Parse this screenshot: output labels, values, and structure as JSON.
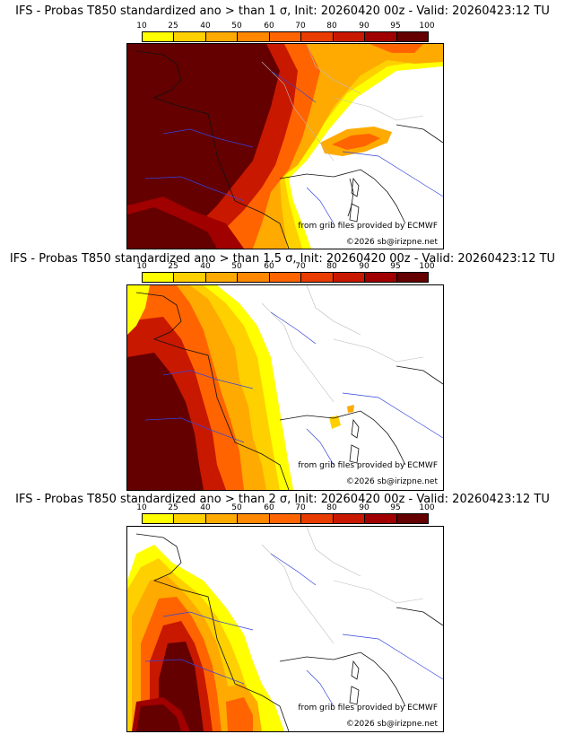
{
  "legend": {
    "ticks": [
      "10",
      "25",
      "40",
      "50",
      "60",
      "70",
      "80",
      "90",
      "95",
      "100"
    ],
    "colors": [
      "#ffff00",
      "#ffd000",
      "#ffaa00",
      "#ff8800",
      "#ff6400",
      "#e83c00",
      "#c81800",
      "#a00000",
      "#640000"
    ]
  },
  "panels": [
    {
      "title": "IFS - Probas T850  standardized ano > than 1 σ, Init: 20260420 00z - Valid: 20260423:12 TU",
      "credit_source": "from grib files provided by ECMWF",
      "credit_copyright": "©2026 sb@irizpne.net"
    },
    {
      "title": "IFS - Probas T850  standardized ano > than 1.5 σ, Init: 20260420 00z - Valid: 20260423:12 TU",
      "credit_source": "from grib files provided by ECMWF",
      "credit_copyright": "©2026 sb@irizpne.net"
    },
    {
      "title": "IFS - Probas T850  standardized ano > than 2 σ, Init: 20260420 00z - Valid: 20260423:12 TU",
      "credit_source": "from grib files provided by ECMWF",
      "credit_copyright": "©2026 sb@irizpne.net"
    }
  ]
}
